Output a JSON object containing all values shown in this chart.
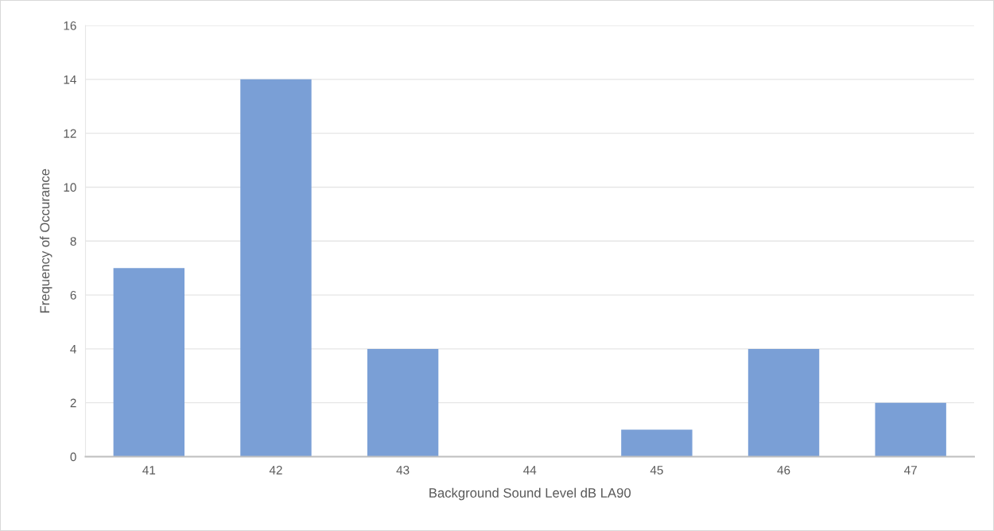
{
  "chart_data": {
    "type": "bar",
    "xlabel": "Background Sound Level dB LA90",
    "ylabel": "Frequency of Occurance",
    "categories": [
      "41",
      "42",
      "43",
      "44",
      "45",
      "46",
      "47"
    ],
    "values": [
      7,
      14,
      4,
      0,
      1,
      4,
      2
    ],
    "color": "#7a9fd6",
    "ylim": [
      0,
      16
    ],
    "yticks": [
      0,
      2,
      4,
      6,
      8,
      10,
      12,
      14,
      16
    ],
    "grid": "y"
  }
}
